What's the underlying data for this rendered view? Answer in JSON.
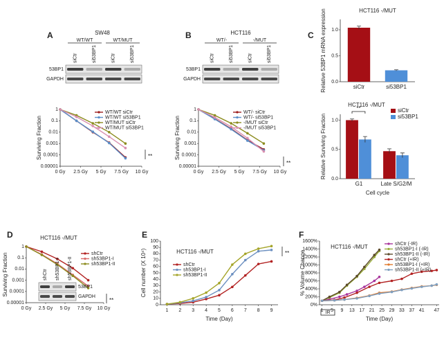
{
  "chart_data": [
    {
      "type": "line",
      "panel": "A",
      "title": "SW48",
      "ylabel": "Surviving Fraction",
      "log_y": true,
      "x": [
        0,
        2,
        4,
        6,
        8
      ],
      "xlim": [
        0,
        10
      ],
      "xticks": [
        {
          "value": 0,
          "label": "0 Gy"
        },
        {
          "value": 2.5,
          "label": "2.5 Gy"
        },
        {
          "value": 5,
          "label": "5 Gy"
        },
        {
          "value": 7.5,
          "label": "7.5 Gy"
        },
        {
          "value": 10,
          "label": "10 Gy"
        }
      ],
      "ylim": [
        1e-05,
        1
      ],
      "yticks": [
        1,
        0.1,
        0.01,
        0.001,
        0.0001,
        1e-05
      ],
      "series": [
        {
          "name": "WT/WT siCtr",
          "color": "#9b1b1b",
          "values": [
            1,
            0.1,
            0.01,
            0.0012,
            6e-05
          ]
        },
        {
          "name": "WT/WT si53BP1",
          "color": "#5b8fc9",
          "values": [
            1,
            0.1,
            0.011,
            0.0011,
            5e-05
          ]
        },
        {
          "name": "WT/MUT siCtr",
          "color": "#8c8c1e",
          "values": [
            1,
            0.3,
            0.06,
            0.01,
            0.001
          ]
        },
        {
          "name": "WT/MUT si53BP1",
          "color": "#d88fb0",
          "values": [
            1,
            0.22,
            0.035,
            0.004,
            0.0004
          ]
        }
      ],
      "annotations": [
        "**"
      ],
      "blot": {
        "groups": [
          "WT/WT",
          "WT/MUT"
        ],
        "lanes": [
          "siCtr",
          "si53BP1",
          "siCtr",
          "si53BP1"
        ],
        "rows": [
          "53BP1",
          "GAPDH"
        ]
      }
    },
    {
      "type": "line",
      "panel": "B",
      "title": "HCT116",
      "ylabel": "Surviving Fraction",
      "log_y": true,
      "x": [
        0,
        2,
        4,
        6,
        8
      ],
      "xlim": [
        0,
        10
      ],
      "xticks": [
        {
          "value": 0,
          "label": "0 Gy"
        },
        {
          "value": 2.5,
          "label": "2.5 Gy"
        },
        {
          "value": 5,
          "label": "5 Gy"
        },
        {
          "value": 7.5,
          "label": "7.5 Gy"
        },
        {
          "value": 10,
          "label": "10 Gy"
        }
      ],
      "ylim": [
        1e-05,
        1
      ],
      "yticks": [
        1,
        0.1,
        0.01,
        0.001,
        0.0001,
        1e-05
      ],
      "series": [
        {
          "name": "WT/- siCtr",
          "color": "#9b1b1b",
          "values": [
            1,
            0.15,
            0.02,
            0.002,
            0.0003
          ]
        },
        {
          "name": "WT/- si53BP1",
          "color": "#5b8fc9",
          "values": [
            1,
            0.14,
            0.018,
            0.0018,
            0.00025
          ]
        },
        {
          "name": "-/MUT siCtr",
          "color": "#8c8c1e",
          "values": [
            1,
            0.3,
            0.06,
            0.008,
            0.001
          ]
        },
        {
          "name": "-/MUT si53BP1",
          "color": "#d88fb0",
          "values": [
            1,
            0.2,
            0.03,
            0.003,
            0.0002
          ]
        }
      ],
      "annotations": [
        "**"
      ],
      "blot": {
        "groups": [
          "WT/-",
          "-/MUT"
        ],
        "lanes": [
          "siCtr",
          "si53BP1",
          "siCtr",
          "si53BP1"
        ],
        "rows": [
          "53BP1",
          "GAPDH"
        ]
      }
    },
    {
      "type": "bar",
      "panel": "C",
      "title": "HCT116 -/MUT",
      "ylabel": "Relative 53BP1 mRNA expression",
      "categories": [
        "siCtr",
        "si53BP1"
      ],
      "values": [
        1.04,
        0.22
      ],
      "errors": [
        0.03,
        0.01
      ],
      "colors": [
        "#a50f15",
        "#4f8fd8"
      ],
      "ylim": [
        0,
        1.2
      ],
      "yticks": [
        {
          "value": 0,
          "label": "0.0"
        },
        {
          "value": 0.5,
          "label": "0.5"
        },
        {
          "value": 1,
          "label": "1.0"
        }
      ]
    },
    {
      "type": "grouped_bar",
      "title": "HCT116 -/MUT",
      "ylabel": "Relative Surviving Fraction",
      "xlabel": "Cell cycle",
      "categories": [
        "G1",
        "Late S/G2/M"
      ],
      "series": [
        {
          "name": "siCtr",
          "color": "#a50f15",
          "values": [
            1.0,
            0.47
          ],
          "errors": [
            0.02,
            0.04
          ]
        },
        {
          "name": "si53BP1",
          "color": "#4f8fd8",
          "values": [
            0.67,
            0.4
          ],
          "errors": [
            0.05,
            0.04
          ]
        }
      ],
      "ylim": [
        0,
        1.1
      ],
      "yticks": [
        {
          "value": 0,
          "label": "0.0"
        },
        {
          "value": 0.5,
          "label": "0.5"
        },
        {
          "value": 1,
          "label": "1.0"
        }
      ],
      "annotations": [
        "**"
      ]
    },
    {
      "type": "line",
      "panel": "D",
      "title": "HCT116 -/MUT",
      "ylabel": "Surviving Fraction",
      "log_y": true,
      "x": [
        0,
        2,
        4,
        6,
        8
      ],
      "xlim": [
        0,
        10
      ],
      "xticks": [
        {
          "value": 0,
          "label": "0 Gy"
        },
        {
          "value": 2.5,
          "label": "2.5 Gy"
        },
        {
          "value": 5,
          "label": "5 Gy"
        },
        {
          "value": 7.5,
          "label": "7.5 Gy"
        },
        {
          "value": 10,
          "label": "10 Gy"
        }
      ],
      "ylim": [
        1e-05,
        1
      ],
      "yticks": [
        1,
        0.1,
        0.01,
        0.001,
        0.0001,
        1e-05
      ],
      "series": [
        {
          "name": "shCtr",
          "color": "#b22222",
          "values": [
            1,
            0.35,
            0.08,
            0.012,
            0.001
          ]
        },
        {
          "name": "sh53BP1-I",
          "color": "#d86a6a",
          "values": [
            1,
            0.2,
            0.03,
            0.003,
            0.0003
          ]
        },
        {
          "name": "sh53BP1-II",
          "color": "#8c8c1e",
          "values": [
            1,
            0.18,
            0.025,
            0.0025,
            0.0002
          ]
        }
      ],
      "annotations": [
        "**"
      ],
      "blot": {
        "lanes": [
          "shCtr",
          "sh53BP1-I",
          "sh53BP1-II"
        ],
        "rows": [
          "53BP1",
          "GAPDH"
        ]
      }
    },
    {
      "type": "line",
      "panel": "E",
      "title": "HCT116 -/MUT",
      "ylabel": "Cell number (X 10⁴)",
      "xlabel": "Time (Day)",
      "x": [
        1,
        2,
        3,
        4,
        5,
        6,
        7,
        8,
        9
      ],
      "xlim": [
        0.5,
        9.5
      ],
      "xticks": [
        1,
        2,
        3,
        4,
        5,
        6,
        7,
        8,
        9
      ],
      "ylim": [
        0,
        100
      ],
      "yticks": [
        0,
        10,
        20,
        30,
        40,
        50,
        60,
        70,
        80,
        90,
        100
      ],
      "series": [
        {
          "name": "shCtr",
          "color": "#b22222",
          "values": [
            1,
            2,
            4,
            9,
            15,
            28,
            46,
            64,
            68
          ]
        },
        {
          "name": "sh53BP1-I",
          "color": "#6b8fc0",
          "values": [
            1,
            3,
            6,
            12,
            23,
            48,
            70,
            84,
            86
          ]
        },
        {
          "name": "sh53BP1-II",
          "color": "#a5a52a",
          "values": [
            1,
            4,
            10,
            19,
            34,
            63,
            80,
            88,
            92
          ]
        }
      ],
      "annotations": [
        "**"
      ]
    },
    {
      "type": "line",
      "panel": "F",
      "title": "HCT116 -/MUT",
      "ylabel": "% Volume Change",
      "xlabel": "Time (Day)",
      "xlim": [
        0,
        48
      ],
      "xticks": [
        1,
        5,
        9,
        13,
        17,
        21,
        25,
        29,
        33,
        37,
        41,
        47
      ],
      "ylim": [
        0,
        1600
      ],
      "yticks": [
        {
          "value": 0,
          "label": "0%"
        },
        {
          "value": 200,
          "label": "200%"
        },
        {
          "value": 400,
          "label": "400%"
        },
        {
          "value": 600,
          "label": "600%"
        },
        {
          "value": 800,
          "label": "800%"
        },
        {
          "value": 1000,
          "label": "1000%"
        },
        {
          "value": 1200,
          "label": "1200%"
        },
        {
          "value": 1400,
          "label": "1400%"
        },
        {
          "value": 1600,
          "label": "1600%"
        }
      ],
      "series": [
        {
          "name": "shCtr (-IR)",
          "color": "#a8339b",
          "x": [
            1,
            4,
            8,
            11,
            15,
            18,
            22,
            24
          ],
          "values": [
            100,
            140,
            200,
            260,
            350,
            450,
            600,
            700
          ]
        },
        {
          "name": "sh53BP1-I (-IR)",
          "color": "#9aad3c",
          "x": [
            1,
            4,
            8,
            11,
            15,
            18,
            22,
            24
          ],
          "values": [
            100,
            180,
            300,
            480,
            700,
            900,
            1200,
            1350
          ]
        },
        {
          "name": "sh53BP1-II (-IR)",
          "color": "#5c4a2a",
          "x": [
            1,
            4,
            8,
            11,
            15,
            18,
            22,
            24
          ],
          "values": [
            100,
            200,
            320,
            500,
            720,
            950,
            1250,
            1380
          ]
        },
        {
          "name": "shCtr (+IR)",
          "color": "#b22222",
          "x": [
            1,
            6,
            10,
            15,
            20,
            24,
            29,
            33,
            37,
            41,
            45,
            47
          ],
          "values": [
            100,
            120,
            180,
            300,
            450,
            550,
            600,
            650,
            780,
            830,
            850,
            870
          ]
        },
        {
          "name": "sh53BP1-I (+IR)",
          "color": "#e07a2e",
          "x": [
            1,
            6,
            10,
            15,
            20,
            24,
            29,
            33,
            37,
            41,
            45,
            47
          ],
          "values": [
            100,
            110,
            130,
            170,
            230,
            300,
            330,
            380,
            420,
            460,
            480,
            500
          ]
        },
        {
          "name": "sh53BP1-II (+IR)",
          "color": "#7f9fbf",
          "x": [
            1,
            6,
            10,
            15,
            20,
            24,
            29,
            33,
            37,
            41,
            45,
            47
          ],
          "values": [
            100,
            110,
            130,
            160,
            220,
            280,
            320,
            370,
            410,
            450,
            480,
            510
          ]
        }
      ],
      "annotations": [
        "IR"
      ]
    }
  ]
}
